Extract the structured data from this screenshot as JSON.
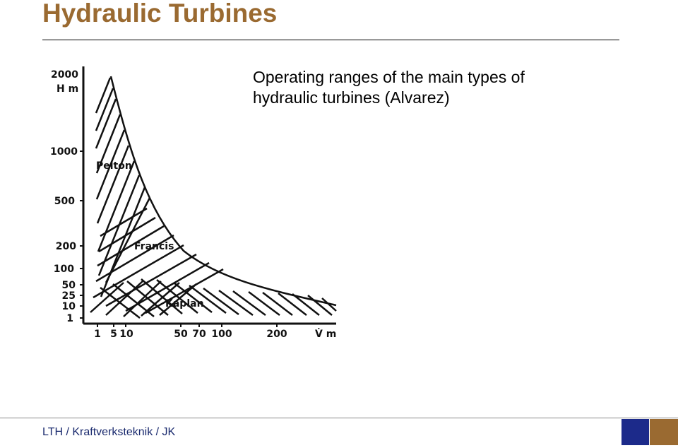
{
  "slide": {
    "title": "Hydraulic Turbines",
    "subtitle_line1": "Operating ranges of the main types of",
    "subtitle_line2": "hydraulic turbines (Alvarez)"
  },
  "chart": {
    "y_axis_top_label": "2000",
    "y_axis_unit_label": "H m",
    "y_ticks": [
      "1000",
      "500",
      "200",
      "100",
      "50",
      "25",
      "10",
      "1"
    ],
    "x_ticks": [
      "1",
      "5",
      "10",
      "50",
      "70",
      "100",
      "200"
    ],
    "x_axis_unit_label": "V̇ m",
    "region_labels": {
      "pelton": "Pelton",
      "francis": "Francis",
      "kaplan": "Kaplan"
    },
    "line_color": "#111111"
  },
  "footer": {
    "text": "LTH / Kraftverksteknik / JK",
    "brand_navy": "#1c2a8a",
    "brand_brown": "#9a6a31"
  }
}
